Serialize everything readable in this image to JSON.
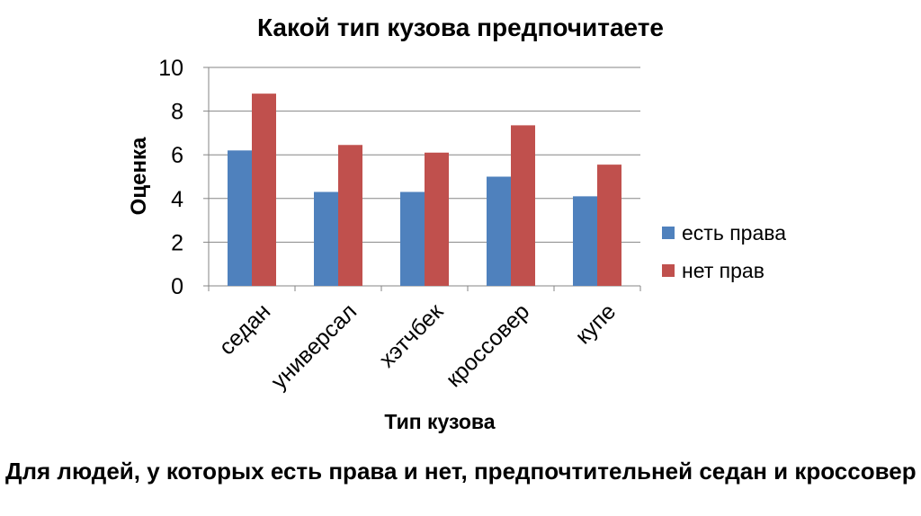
{
  "chart_data": {
    "type": "bar",
    "title": "Какой тип кузова предпочитаете",
    "xlabel": "Тип кузова",
    "ylabel": "Оценка",
    "categories": [
      "седан",
      "универсал",
      "хэтчбек",
      "кроссовер",
      "купе"
    ],
    "series": [
      {
        "name": "есть права",
        "color": "#4F81BD",
        "values": [
          6.2,
          4.3,
          4.3,
          5.0,
          4.1
        ]
      },
      {
        "name": "нет прав",
        "color": "#C0504D",
        "values": [
          8.8,
          6.45,
          6.1,
          7.35,
          5.55
        ]
      }
    ],
    "ylim": [
      0,
      10
    ],
    "yticks": [
      "0",
      "2",
      "4",
      "6",
      "8",
      "10"
    ],
    "grid": true,
    "legend_position": "right"
  },
  "caption": "Для людей, у которых есть права и нет, предпочтительней седан и кроссовер"
}
